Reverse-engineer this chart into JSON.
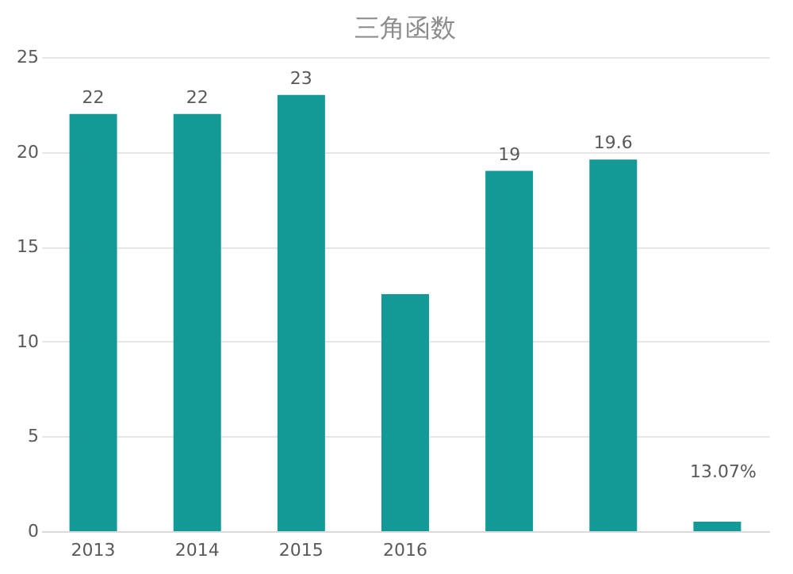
{
  "chart_data": {
    "type": "bar",
    "title": "三角函数",
    "categories": [
      "2013",
      "2014",
      "2015",
      "2016",
      null,
      null,
      null
    ],
    "values": [
      22,
      22,
      23,
      12.5,
      19,
      19.6,
      0.5
    ],
    "value_labels": [
      "22",
      "22",
      "23",
      null,
      "19",
      "19.6",
      null
    ],
    "annotations": [
      "13.07%"
    ],
    "color": "#139a96",
    "ylim": [
      0,
      25
    ],
    "yticks": [
      0,
      5,
      10,
      15,
      20,
      25
    ],
    "grid": "y"
  }
}
